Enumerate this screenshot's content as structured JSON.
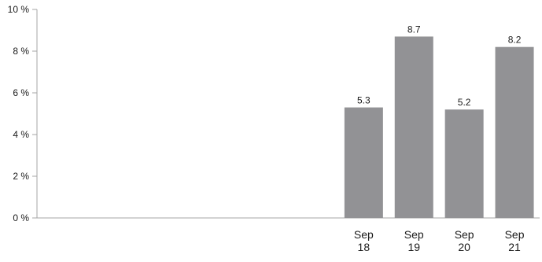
{
  "chart_data": {
    "type": "bar",
    "categories": [
      "",
      "",
      "",
      "",
      "",
      "",
      "Sep\n18",
      "Sep\n19",
      "Sep\n20",
      "Sep\n21"
    ],
    "values": [
      null,
      null,
      null,
      null,
      null,
      null,
      5.3,
      8.7,
      5.2,
      8.2
    ],
    "data_labels": [
      "",
      "",
      "",
      "",
      "",
      "",
      "5.3",
      "8.7",
      "5.2",
      "8.2"
    ],
    "y_ticks": [
      "0 %",
      "2 %",
      "4 %",
      "6 %",
      "8 %",
      "10 %"
    ],
    "y_tick_values": [
      0,
      2,
      4,
      6,
      8,
      10
    ],
    "ylim": [
      0,
      10
    ],
    "title": "",
    "xlabel": "",
    "ylabel": "",
    "grid": false,
    "colors": {
      "bar": "#929295",
      "axis": "#a6a6a6",
      "text": "#1a1a1a"
    }
  }
}
